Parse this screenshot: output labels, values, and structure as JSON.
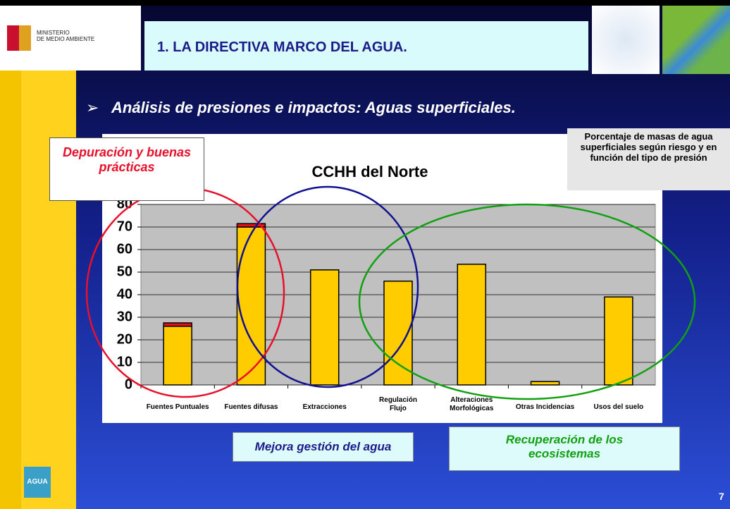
{
  "header": {
    "ministry": "MINISTERIO\nDE MEDIO AMBIENTE",
    "title": "1. LA DIRECTIVA MARCO DEL AGUA."
  },
  "subtitle": "Análisis de presiones e impactos: Aguas superficiales.",
  "notes": {
    "left": "Depuración y buenas prácticas",
    "right": "Porcentaje de masas de agua superficiales según riesgo y en función del tipo de presión",
    "middle": "Mejora gestión del agua",
    "bottom_right": "Recuperación de los ecosistemas"
  },
  "logo": "AGUA",
  "page_number": "7",
  "chart_data": {
    "type": "stacked_bar",
    "title": "CCHH del Norte",
    "categories": [
      "Fuentes Puntuales",
      "Fuentes difusas",
      "Extracciones",
      "Regulación\nFlujo",
      "Alteraciones\nMorfológicas",
      "Otras Incidencias",
      "Usos del suelo"
    ],
    "series": [
      {
        "color": "#FFCC00",
        "values": [
          26,
          70,
          51,
          46,
          53.5,
          1.5,
          39
        ]
      },
      {
        "color": "#E8101A",
        "values": [
          1.5,
          1.5,
          0,
          0,
          0,
          0,
          0
        ]
      }
    ],
    "ylim": [
      0,
      80
    ],
    "yticks": [
      0,
      10,
      20,
      30,
      40,
      50,
      60,
      70,
      80
    ],
    "grid": true
  }
}
